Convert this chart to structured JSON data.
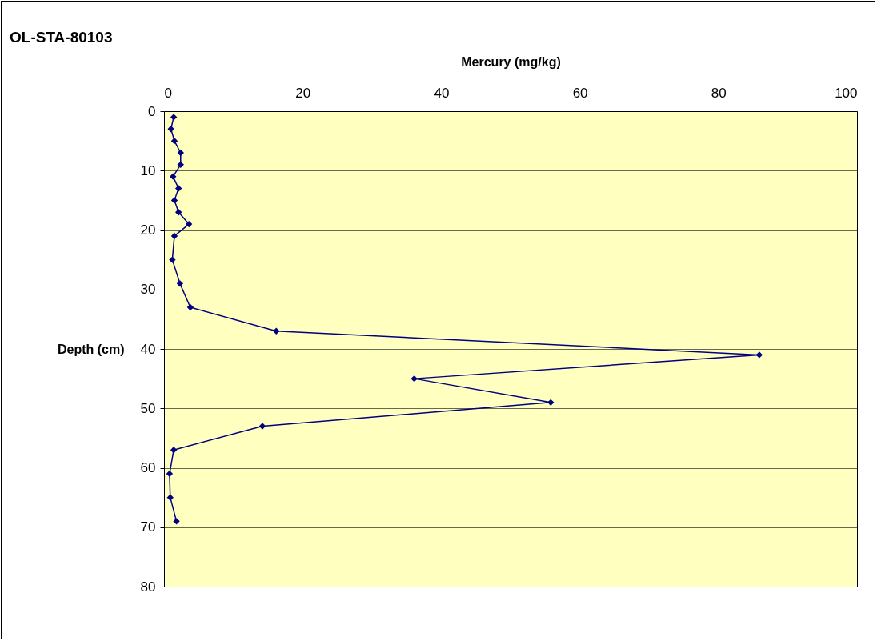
{
  "chart_data": {
    "type": "line",
    "title": "OL-STA-80103",
    "xlabel": "Mercury (mg/kg)",
    "ylabel": "Depth (cm)",
    "series": [
      {
        "color": "#000080",
        "x": [
          1.4,
          1.0,
          1.5,
          2.4,
          2.4,
          1.3,
          2.1,
          1.5,
          2.1,
          3.6,
          1.5,
          1.2,
          2.3,
          3.8,
          16.2,
          85.9,
          36.1,
          55.8,
          14.2,
          1.4,
          0.8,
          0.9,
          1.8
        ],
        "values": [
          1,
          3,
          5,
          7,
          9,
          11,
          13,
          15,
          17,
          19,
          21,
          25,
          29,
          33,
          37,
          41,
          45,
          49,
          53,
          57,
          61,
          65,
          69
        ]
      }
    ],
    "xlim": [
      0,
      100
    ],
    "xticks": [
      0,
      20,
      40,
      60,
      80,
      100
    ],
    "ylim": [
      80,
      0
    ],
    "yticks": [
      0,
      10,
      20,
      30,
      40,
      50,
      60,
      70,
      80
    ],
    "grid": "y",
    "marker": "diamond",
    "line_style": "solid"
  }
}
